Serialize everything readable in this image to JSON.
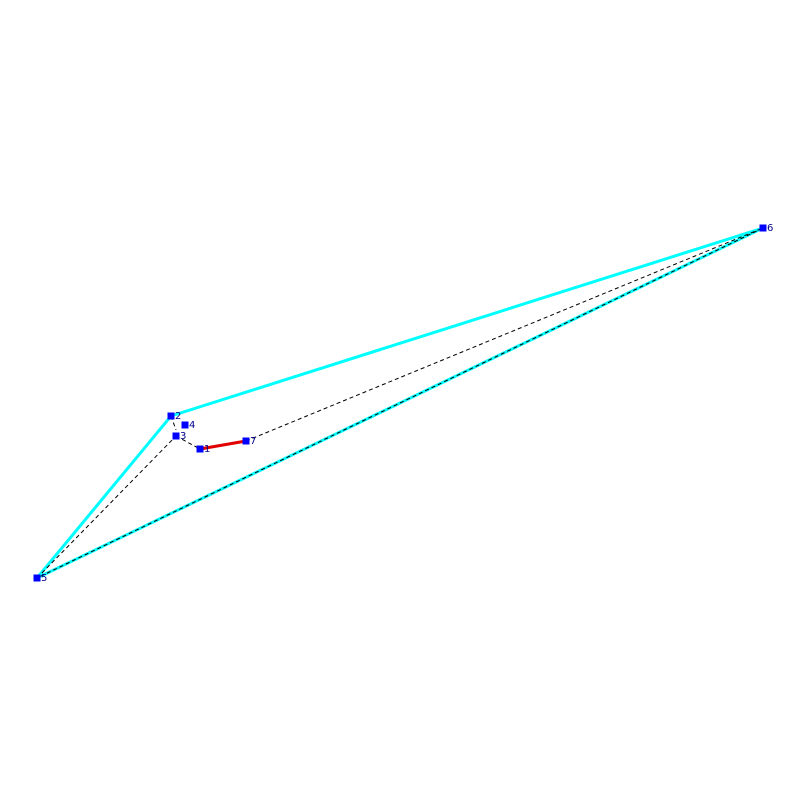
{
  "nodes": [
    {
      "label": "1"
    },
    {
      "label": "2"
    },
    {
      "label": "3"
    },
    {
      "label": "4"
    },
    {
      "label": "5"
    },
    {
      "label": "6"
    },
    {
      "label": "7"
    }
  ]
}
